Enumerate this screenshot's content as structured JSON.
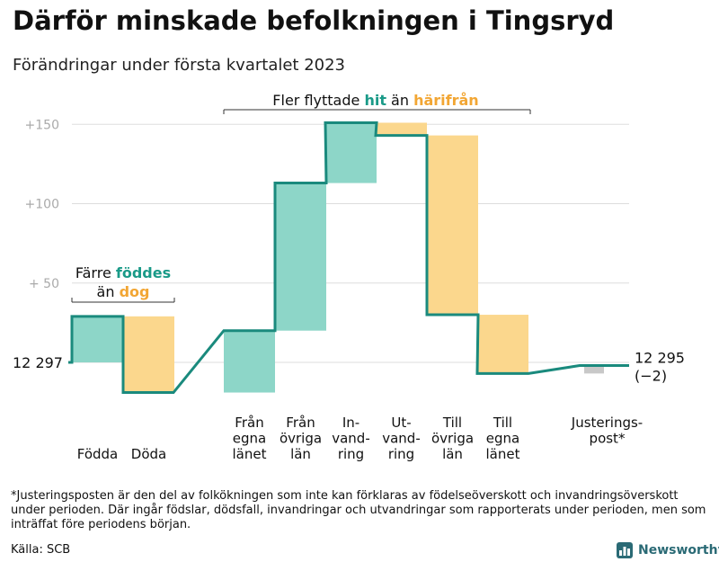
{
  "title": "Därför minskade befolkningen i Tingsryd",
  "subtitle": "Förändringar under första kvartalet 2023",
  "footnote": "*Justeringsposten är den del av folkökningen som inte kan förklaras av födelseöverskott och invandringsöverskott under perioden. Där ingår födslar, dödsfall, invandringar och utvandringar som rapporterats under perioden, men som inträffat före periodens början.",
  "source": "Källa: SCB",
  "brand": "Newsworthy",
  "colors": {
    "increase": "#8dd6c8",
    "decrease": "#fbd78d",
    "adjustment": "#c8c8c8",
    "line": "#1a8a7d",
    "grid": "#dddddd",
    "green_text": "#1a9a88",
    "orange_text": "#f2a634"
  },
  "chart_data": {
    "type": "waterfall",
    "title": "Därför minskade befolkningen i Tingsryd",
    "subtitle": "Förändringar under första kvartalet 2023",
    "baseline_population": 12297,
    "ylim": [
      -20,
      160
    ],
    "yticks": [
      {
        "value": 150,
        "label": "+150"
      },
      {
        "value": 100,
        "label": "+100"
      },
      {
        "value": 50,
        "label": "+ 50"
      }
    ],
    "start_label": "12 297",
    "end_label": "12 295",
    "end_change_label": "(−2)",
    "steps": [
      {
        "label": [
          "Födda"
        ],
        "change": 29,
        "kind": "increase"
      },
      {
        "label": [
          "Döda"
        ],
        "change": -48,
        "kind": "decrease"
      },
      {
        "label": [
          "Från",
          "egna",
          "länet"
        ],
        "change": 39,
        "kind": "increase"
      },
      {
        "label": [
          "Från",
          "övriga",
          "län"
        ],
        "change": 93,
        "kind": "increase"
      },
      {
        "label": [
          "In-",
          "vand-",
          "ring"
        ],
        "change": 38,
        "kind": "increase"
      },
      {
        "label": [
          "Ut-",
          "vand-",
          "ring"
        ],
        "change": -8,
        "kind": "decrease"
      },
      {
        "label": [
          "Till",
          "övriga",
          "län"
        ],
        "change": -113,
        "kind": "decrease"
      },
      {
        "label": [
          "Till",
          "egna",
          "länet"
        ],
        "change": -37,
        "kind": "decrease"
      },
      {
        "label": [
          "Justerings-",
          "post*"
        ],
        "change": 5,
        "kind": "adjustment"
      }
    ],
    "annotations": [
      {
        "id": "births",
        "lines": [
          [
            {
              "text": "Färre ",
              "color": "dark",
              "bold": false
            },
            {
              "text": "föddes",
              "color": "green",
              "bold": true
            }
          ],
          [
            {
              "text": "än ",
              "color": "dark",
              "bold": false
            },
            {
              "text": "dog",
              "color": "orange",
              "bold": true
            }
          ]
        ]
      },
      {
        "id": "migration",
        "lines": [
          [
            {
              "text": "Fler flyttade ",
              "color": "dark",
              "bold": false
            },
            {
              "text": "hit",
              "color": "green",
              "bold": true
            },
            {
              "text": " än ",
              "color": "dark",
              "bold": false
            },
            {
              "text": "härifrån",
              "color": "orange",
              "bold": true
            }
          ]
        ]
      }
    ]
  }
}
